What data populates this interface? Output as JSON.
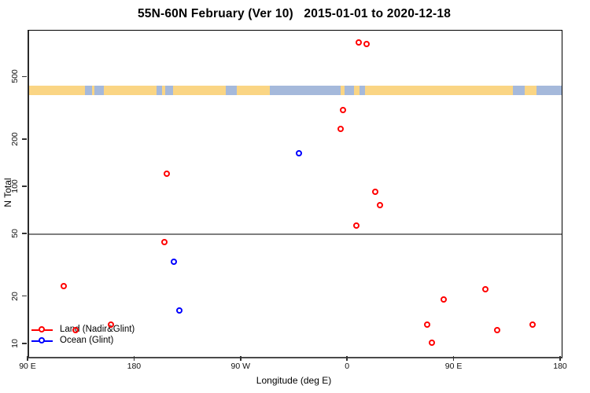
{
  "chart_data": {
    "type": "scatter",
    "title": "55N-60N February (Ver 10)   2015-01-01 to 2020-12-18",
    "xlabel": "Longitude (deg E)",
    "ylabel": "N Total",
    "x_axis": {
      "range": [
        90,
        540
      ],
      "ticks": [
        {
          "pos": 90,
          "label": "90 E"
        },
        {
          "pos": 180,
          "label": "180"
        },
        {
          "pos": 270,
          "label": "90 W"
        },
        {
          "pos": 360,
          "label": "0"
        },
        {
          "pos": 450,
          "label": "90 E"
        },
        {
          "pos": 540,
          "label": "180"
        }
      ]
    },
    "y_axis": {
      "scale": "log",
      "range": [
        8.3,
        990
      ],
      "ticks": [
        {
          "value": 10,
          "label": "10"
        },
        {
          "value": 20,
          "label": "20"
        },
        {
          "value": 50,
          "label": "50"
        },
        {
          "value": 100,
          "label": "100"
        },
        {
          "value": 200,
          "label": "200"
        },
        {
          "value": 500,
          "label": "500"
        }
      ]
    },
    "reference_line": {
      "y": 50,
      "color": "#7f7f7f"
    },
    "map_strip": {
      "land_color": "#FAD584",
      "ocean_color": "#A5B9DB",
      "segments": [
        [
          0,
          10.5,
          "land"
        ],
        [
          10.5,
          11.8,
          "ocean"
        ],
        [
          11.8,
          12.3,
          "land"
        ],
        [
          12.3,
          14.0,
          "ocean"
        ],
        [
          14.0,
          23.9,
          "land"
        ],
        [
          23.9,
          25.0,
          "ocean"
        ],
        [
          25.0,
          25.6,
          "land"
        ],
        [
          25.6,
          27.0,
          "ocean"
        ],
        [
          27.0,
          36.9,
          "land"
        ],
        [
          36.9,
          39.0,
          "ocean"
        ],
        [
          39.0,
          45.2,
          "land"
        ],
        [
          45.2,
          58.5,
          "ocean"
        ],
        [
          58.5,
          59.3,
          "land"
        ],
        [
          59.3,
          61.0,
          "ocean"
        ],
        [
          61.0,
          62.0,
          "land"
        ],
        [
          62.0,
          63.1,
          "ocean"
        ],
        [
          63.1,
          90.8,
          "land"
        ],
        [
          90.8,
          93.0,
          "ocean"
        ],
        [
          93.0,
          95.3,
          "land"
        ],
        [
          95.3,
          100,
          "ocean"
        ]
      ]
    },
    "series": [
      {
        "name": "Land (Nadir&Glint)",
        "color": "#FF0000",
        "points": [
          {
            "lon": 10.5,
            "axis_pos": 370.5,
            "n": 820
          },
          {
            "lon": 17,
            "axis_pos": 377,
            "n": 800
          },
          {
            "lon": -3,
            "axis_pos": 357,
            "n": 305
          },
          {
            "lon": -5,
            "axis_pos": 355,
            "n": 230
          },
          {
            "lon": -152,
            "axis_pos": 208,
            "n": 120
          },
          {
            "lon": 24,
            "axis_pos": 384,
            "n": 92
          },
          {
            "lon": 28,
            "axis_pos": 388,
            "n": 75
          },
          {
            "lon": 8.5,
            "axis_pos": 368.5,
            "n": 56
          },
          {
            "lon": -154,
            "axis_pos": 206,
            "n": 44
          },
          {
            "lon": 121,
            "axis_pos": 121,
            "n": 23
          },
          {
            "lon": 117,
            "axis_pos": 477,
            "n": 22
          },
          {
            "lon": 82,
            "axis_pos": 442,
            "n": 19
          },
          {
            "lon": 161,
            "axis_pos": 161,
            "n": 13
          },
          {
            "lon": 131,
            "axis_pos": 131,
            "n": 12
          },
          {
            "lon": 68,
            "axis_pos": 428,
            "n": 13
          },
          {
            "lon": 72,
            "axis_pos": 432,
            "n": 10
          },
          {
            "lon": 127,
            "axis_pos": 487,
            "n": 12
          },
          {
            "lon": 157,
            "axis_pos": 517,
            "n": 13
          }
        ]
      },
      {
        "name": "Ocean (Glint)",
        "color": "#0000FF",
        "points": [
          {
            "lon": -40,
            "axis_pos": 320,
            "n": 162
          },
          {
            "lon": -146,
            "axis_pos": 214,
            "n": 33
          },
          {
            "lon": -141,
            "axis_pos": 219,
            "n": 16
          }
        ]
      }
    ],
    "legend_position": "bottom-left"
  }
}
